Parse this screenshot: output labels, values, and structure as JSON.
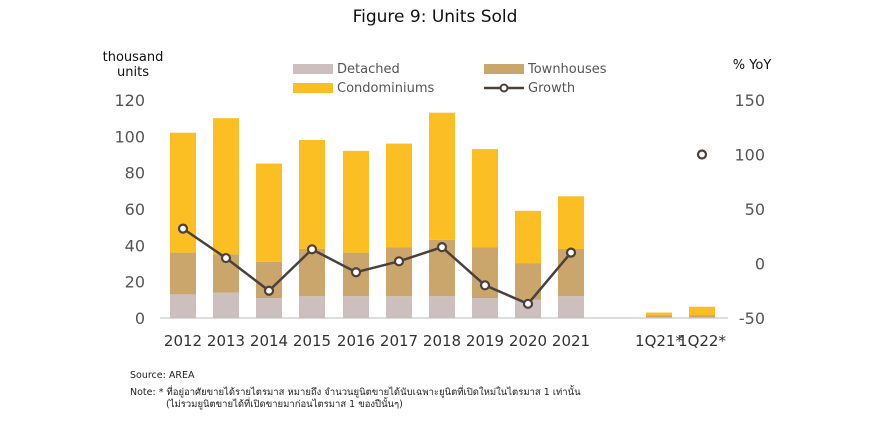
{
  "chart_data": {
    "type": "bar",
    "title": "Figure 9: Units Sold",
    "y_left_label": [
      "thousand",
      "units"
    ],
    "y_right_label": "% YoY",
    "ylim_left": [
      0,
      120
    ],
    "ylim_right": [
      -50,
      150
    ],
    "yticks_left": [
      "0",
      "20",
      "40",
      "60",
      "80",
      "100",
      "120"
    ],
    "yticks_right": [
      "-50",
      "0",
      "50",
      "100",
      "150"
    ],
    "categories": [
      "2012",
      "2013",
      "2014",
      "2015",
      "2016",
      "2017",
      "2018",
      "2019",
      "2020",
      "2021",
      "1Q21*",
      "1Q22*"
    ],
    "series": [
      {
        "name": "Detached",
        "kind": "bar",
        "color": "#cdbfbe",
        "values": [
          13,
          14,
          11,
          12,
          12,
          12,
          12,
          11,
          10,
          12,
          0.4,
          0.4
        ]
      },
      {
        "name": "Townhouses",
        "kind": "bar",
        "color": "#caa56c",
        "values": [
          23,
          21,
          20,
          26,
          24,
          27,
          31,
          28,
          20,
          26,
          1.0,
          1.2
        ]
      },
      {
        "name": "Condominiums",
        "kind": "bar",
        "color": "#fbbf24",
        "values": [
          66,
          75,
          54,
          60,
          56,
          57,
          70,
          54,
          29,
          29,
          1.6,
          4.6
        ]
      },
      {
        "name": "Growth",
        "kind": "line",
        "color": "#4a403c",
        "values": [
          32,
          5,
          -25,
          13,
          -8,
          2,
          15,
          -20,
          -37,
          10,
          null,
          100
        ]
      }
    ],
    "legend": [
      "Detached",
      "Townhouses",
      "Condominiums",
      "Growth"
    ],
    "legend_position": "top"
  },
  "notes": {
    "source": "Source: AREA",
    "note_line1": "Note: * ที่อยู่อาศัยขายได้รายไตรมาส หมายถึง จำนวนยูนิตขายได้นับเฉพาะยูนิตที่เปิดใหม่ในไตรมาส 1 เท่านั้น",
    "note_line2": "(ไม่รวมยูนิตขายได้ที่เปิดขายมาก่อนไตรมาส 1 ของปีนั้นๆ)"
  }
}
